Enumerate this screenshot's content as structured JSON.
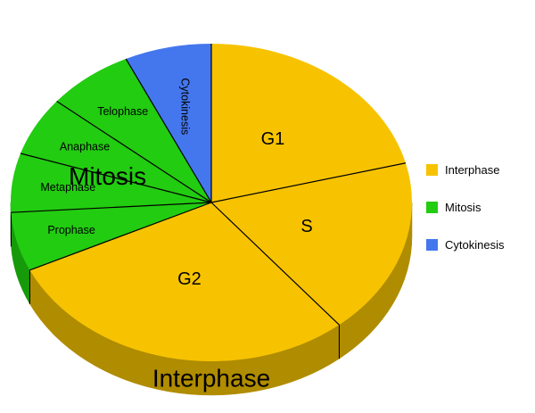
{
  "chart_data": {
    "type": "pie",
    "title": "",
    "legend_position": "right",
    "categories": [
      "Interphase",
      "Mitosis",
      "Cytokinesis"
    ],
    "colors": {
      "Interphase": "#f7c300",
      "Mitosis": "#22cc11",
      "Cytokinesis": "#4477ee"
    },
    "side_colors": {
      "Interphase": "#b08c00",
      "Mitosis": "#169a0a",
      "Cytokinesis": "#2f55b0"
    },
    "slices": [
      {
        "label": "G1",
        "group": "Interphase",
        "value": 21
      },
      {
        "label": "S",
        "group": "Interphase",
        "value": 18
      },
      {
        "label": "G2",
        "group": "Interphase",
        "value": 29
      },
      {
        "label": "Prophase",
        "group": "Mitosis",
        "value": 6
      },
      {
        "label": "Metaphase",
        "group": "Mitosis",
        "value": 6
      },
      {
        "label": "Anaphase",
        "group": "Mitosis",
        "value": 6
      },
      {
        "label": "Telophase",
        "group": "Mitosis",
        "value": 7
      },
      {
        "label": "Cytokinesis",
        "group": "Cytokinesis",
        "value": 7
      }
    ],
    "group_labels": [
      "Interphase",
      "Mitosis"
    ],
    "legend": [
      "Interphase",
      "Mitosis",
      "Cytokinesis"
    ]
  }
}
